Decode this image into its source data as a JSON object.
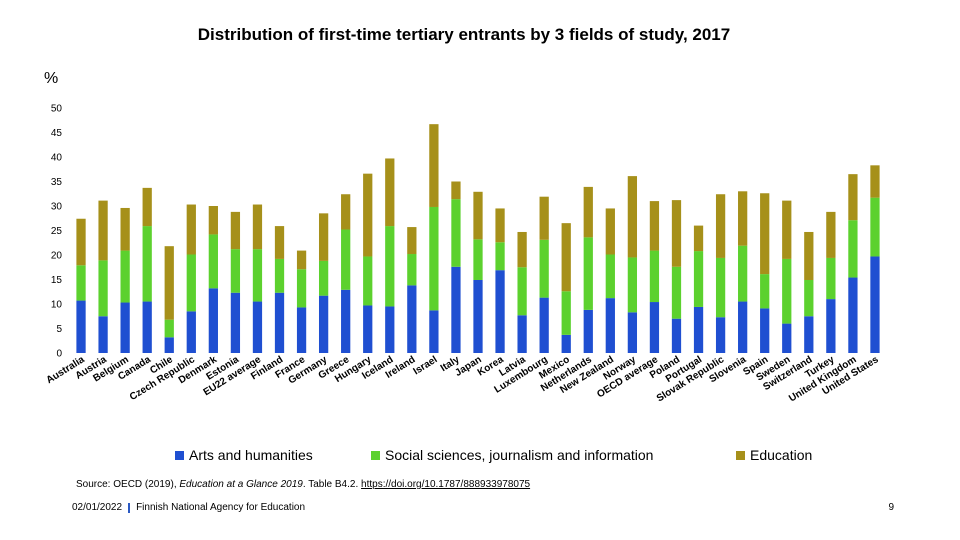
{
  "page": {
    "source_prefix": "Source: OECD (2019),",
    "source_title": "Education at a Glance 2019",
    "source_suffix": ". Table B4.2.",
    "source_link": "https://doi.org/10.1787/888933978075",
    "footer_date": "02/01/2022",
    "footer_org": "Finnish National Agency for Education",
    "page_number": "9"
  },
  "chart_data": {
    "type": "bar",
    "stacked": true,
    "title": "Distribution of first-time tertiary entrants by 3 fields of study, 2017",
    "ylabel": "%",
    "xlabel": "",
    "ylim": [
      0,
      50
    ],
    "yticks": [
      0,
      5,
      10,
      15,
      20,
      25,
      30,
      35,
      40,
      45,
      50
    ],
    "legend_position": "bottom",
    "categories": [
      "Australia",
      "Austria",
      "Belgium",
      "Canada",
      "Chile",
      "Czech Republic",
      "Denmark",
      "Estonia",
      "EU22 average",
      "Finland",
      "France",
      "Germany",
      "Greece",
      "Hungary",
      "Iceland",
      "Ireland",
      "Israel",
      "Italy",
      "Japan",
      "Korea",
      "Latvia",
      "Luxembourg",
      "Mexico",
      "Netherlands",
      "New Zealand",
      "Norway",
      "OECD average",
      "Poland",
      "Portugal",
      "Slovak Republic",
      "Slovenia",
      "Spain",
      "Sweden",
      "Switzerland",
      "Turkey",
      "United Kingdom",
      "United States"
    ],
    "series": [
      {
        "name": "Arts and humanities",
        "color": "#1f4fd1",
        "values": [
          10.7,
          7.5,
          10.3,
          10.5,
          3.2,
          8.5,
          13.2,
          12.3,
          10.5,
          12.3,
          9.3,
          11.7,
          12.9,
          9.7,
          9.5,
          13.8,
          8.7,
          17.6,
          14.9,
          16.9,
          7.7,
          11.3,
          3.7,
          8.8,
          11.2,
          8.3,
          10.4,
          7.0,
          9.4,
          7.3,
          10.5,
          9.1,
          6.0,
          7.5,
          11.0,
          15.4,
          19.7
        ]
      },
      {
        "name": "Social sciences, journalism and information",
        "color": "#5cd12e",
        "values": [
          7.2,
          11.4,
          10.6,
          15.4,
          3.6,
          11.6,
          11.0,
          8.9,
          10.7,
          6.9,
          7.8,
          7.1,
          12.3,
          10.0,
          16.4,
          6.4,
          21.1,
          13.8,
          8.3,
          5.7,
          9.8,
          11.8,
          8.9,
          14.8,
          8.9,
          11.2,
          10.5,
          10.6,
          11.4,
          12.1,
          11.4,
          7.0,
          13.2,
          7.4,
          8.4,
          11.7,
          12.0
        ]
      },
      {
        "name": "Education",
        "color": "#a6901a",
        "values": [
          9.5,
          12.2,
          8.7,
          7.8,
          15.0,
          10.2,
          5.8,
          7.6,
          9.1,
          6.7,
          3.8,
          9.7,
          7.2,
          16.9,
          13.8,
          5.5,
          16.9,
          3.6,
          9.7,
          6.9,
          7.2,
          8.8,
          13.9,
          10.3,
          9.4,
          16.6,
          10.1,
          13.6,
          5.2,
          13.0,
          11.1,
          16.5,
          11.9,
          9.8,
          9.4,
          9.4,
          6.6
        ]
      }
    ]
  }
}
